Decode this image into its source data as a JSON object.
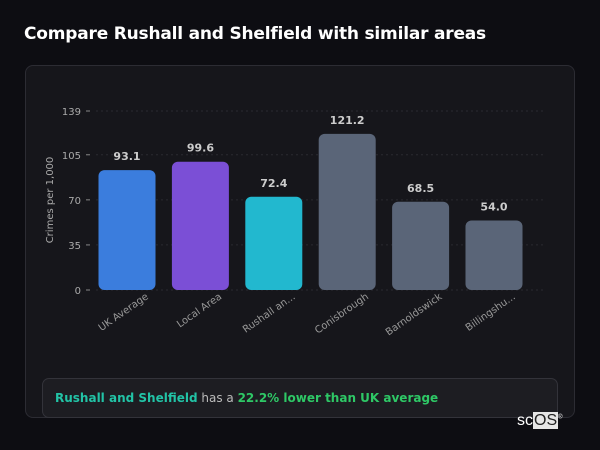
{
  "title": "Compare Rushall and Shelfield with similar areas",
  "chart_data": {
    "type": "bar",
    "title": "",
    "xlabel": "",
    "ylabel": "Crimes per 1,000",
    "ylim": [
      0,
      139
    ],
    "yticks": [
      0,
      35,
      70,
      105,
      139
    ],
    "grid": true,
    "categories": [
      "UK Average",
      "Local Area",
      "Rushall an...",
      "Conisbrough",
      "Barnoldswick",
      "Billingshu..."
    ],
    "values": [
      93.1,
      99.6,
      72.4,
      121.2,
      68.5,
      54.0
    ],
    "data_labels": [
      "93.1",
      "99.6",
      "72.4",
      "121.2",
      "68.5",
      "54.0"
    ],
    "colors": [
      "#3b7ddd",
      "#7b4fd6",
      "#22b8cf",
      "#5a6578",
      "#5a6578",
      "#5a6578"
    ]
  },
  "summary": {
    "area": "Rushall and Shelfield",
    "connector": " has a ",
    "comparison": "22.2% lower than UK average"
  },
  "logo": {
    "text_sc": "sc",
    "text_os": "OS",
    "mark": "®"
  }
}
